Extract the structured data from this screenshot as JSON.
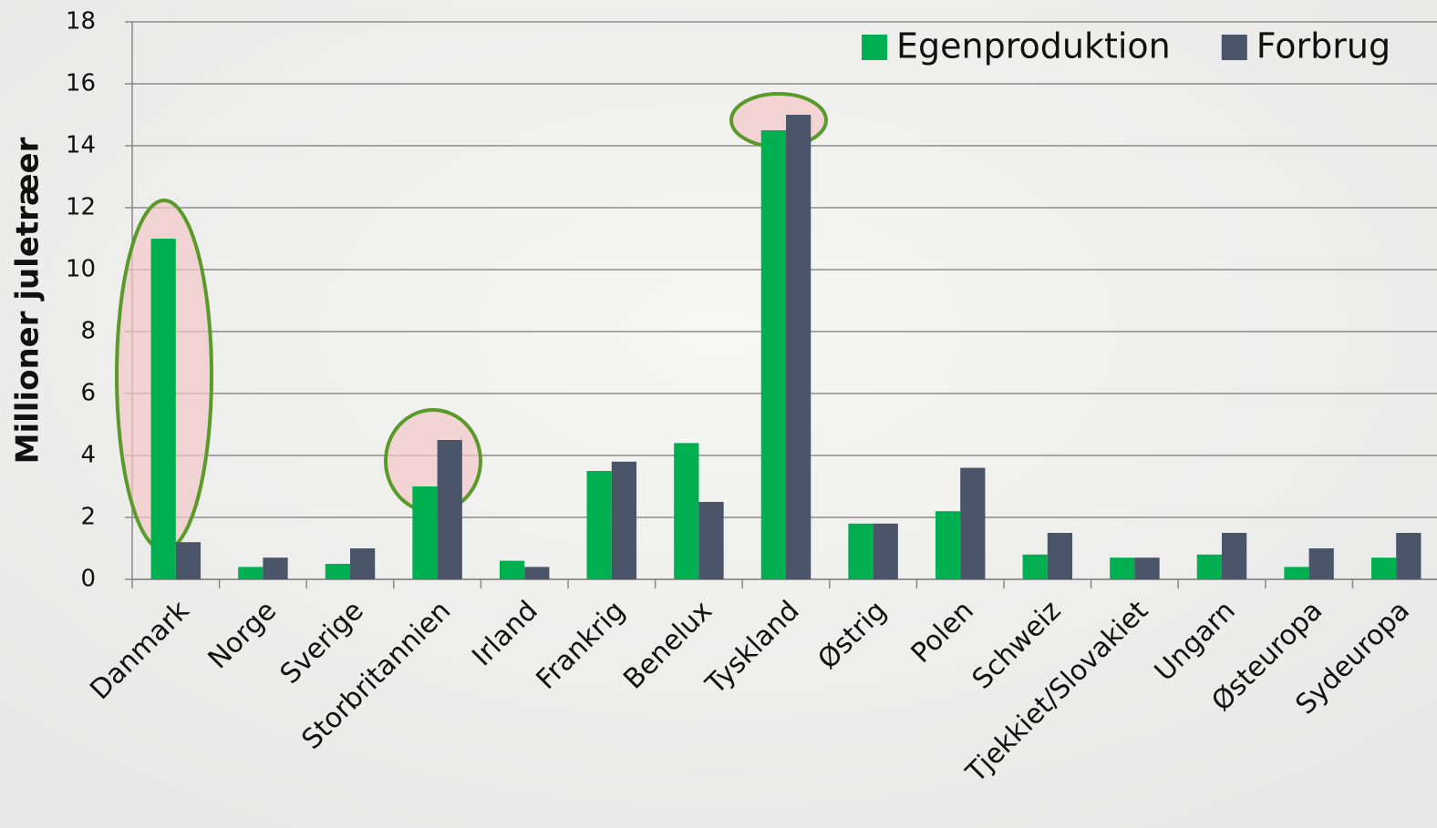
{
  "chart_data": {
    "type": "bar",
    "y_axis_label": "Millioner juletræer",
    "categories": [
      "Danmark",
      "Norge",
      "Sverige",
      "Storbritannien",
      "Irland",
      "Frankrig",
      "Benelux",
      "Tyskland",
      "Østrig",
      "Polen",
      "Schweiz",
      "Tjekkiet/Slovakiet",
      "Ungarn",
      "Østeuropa",
      "Sydeuropa"
    ],
    "series": [
      {
        "name": "Egenproduktion",
        "color": "#00b050",
        "values": [
          11,
          0.4,
          0.5,
          3.0,
          0.6,
          3.5,
          4.4,
          14.5,
          1.8,
          2.2,
          0.8,
          0.7,
          0.8,
          0.4,
          0.7
        ]
      },
      {
        "name": "Forbrug",
        "color": "#4b5569",
        "values": [
          1.2,
          0.7,
          1.0,
          4.5,
          0.4,
          3.8,
          2.5,
          15,
          1.8,
          3.6,
          1.5,
          0.7,
          1.5,
          1.0,
          1.5
        ]
      }
    ],
    "ylim": [
      0,
      18
    ],
    "yticks": [
      0,
      2,
      4,
      6,
      8,
      10,
      12,
      14,
      16,
      18
    ],
    "grid": true,
    "legend": "top-right"
  }
}
